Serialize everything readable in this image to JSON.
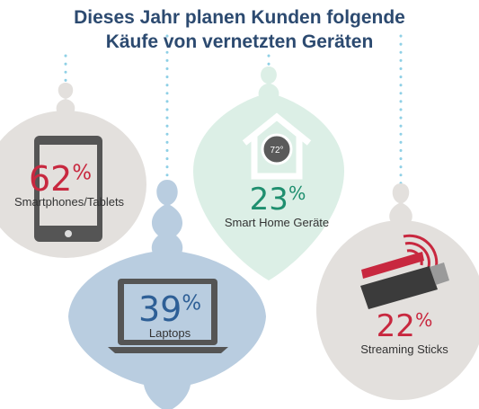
{
  "title": {
    "line1": "Dieses Jahr planen Kunden folgende",
    "line2": "Käufe von vernetzten Geräten"
  },
  "colors": {
    "title": "#2c4a70",
    "percent_red": "#c8283f",
    "percent_blue": "#2e5f96",
    "percent_green": "#1f8f6f",
    "ornament_gray": "#e3e0dd",
    "ornament_blue": "#b9cde0",
    "ornament_green": "#dcefe6",
    "dots": "#8fd0e6"
  },
  "chart_data": {
    "type": "bar",
    "title": "Dieses Jahr planen Kunden folgende Käufe von vernetzten Geräten",
    "categories": [
      "Smartphones/Tablets",
      "Laptops",
      "Smart Home Geräte",
      "Streaming Sticks"
    ],
    "values": [
      62,
      39,
      23,
      22
    ],
    "unit": "%",
    "items": [
      {
        "label": "Smartphones/Tablets",
        "value": 62,
        "icon": "tablet-icon"
      },
      {
        "label": "Laptops",
        "value": 39,
        "icon": "laptop-icon"
      },
      {
        "label": "Smart Home Geräte",
        "value": 23,
        "icon": "smart-home-icon"
      },
      {
        "label": "Streaming Sticks",
        "value": 22,
        "icon": "streaming-stick-icon"
      }
    ]
  },
  "thermostat_text": "72°"
}
